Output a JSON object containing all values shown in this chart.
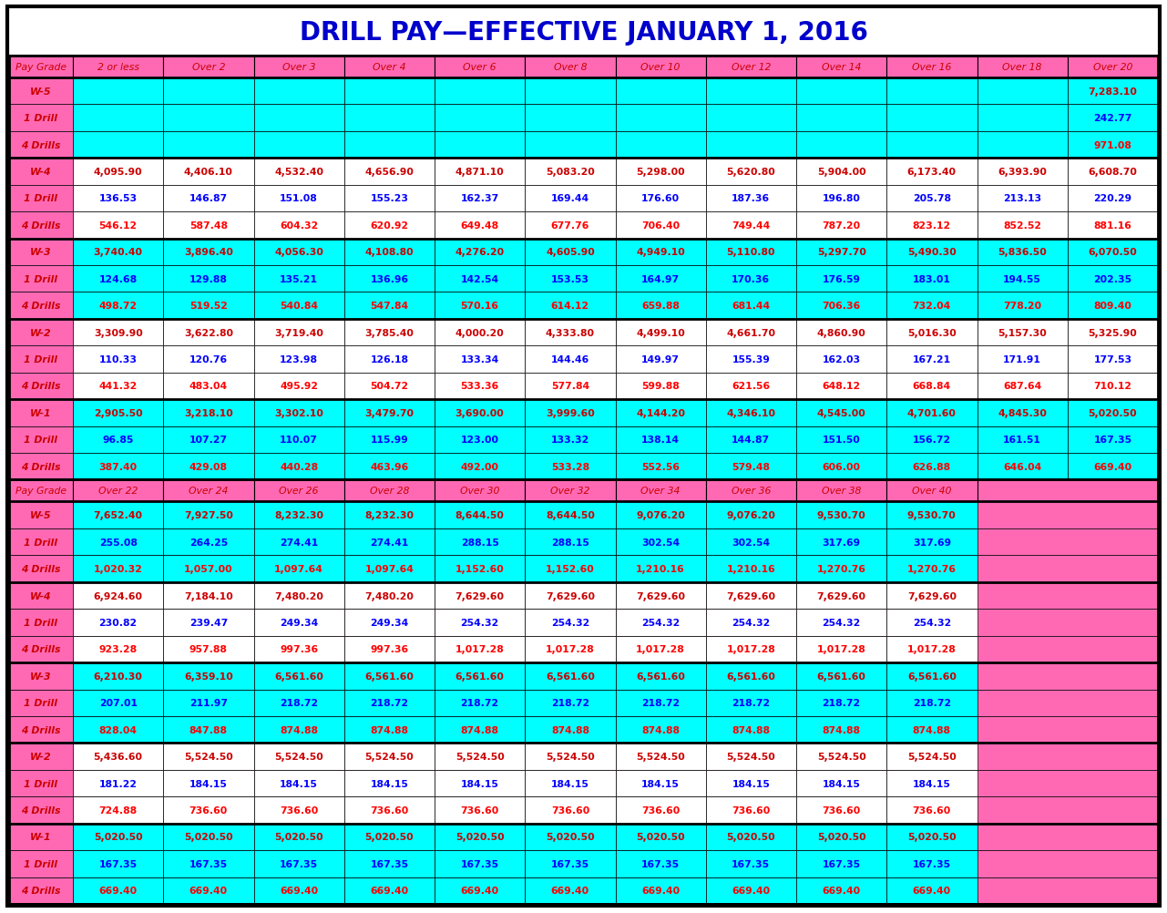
{
  "title": "DRILL PAY—EFFECTIVE JANUARY 1, 2016",
  "title_color": "#0000CC",
  "title_fontsize": 20,
  "bg_color": "#FFFFFF",
  "header1_cols": [
    "Pay Grade",
    "2 or less",
    "Over 2",
    "Over 3",
    "Over 4",
    "Over 6",
    "Over 8",
    "Over 10",
    "Over 12",
    "Over 14",
    "Over 16",
    "Over 18",
    "Over 20"
  ],
  "header2_cols": [
    "Pay Grade",
    "Over 22",
    "Over 24",
    "Over 26",
    "Over 28",
    "Over 30",
    "Over 32",
    "Over 34",
    "Over 36",
    "Over 38",
    "Over 40"
  ],
  "header_bg": "#FF69B4",
  "cyan_bg": "#00FFFF",
  "white_bg": "#FFFFFF",
  "grade_label_color": "#CC0000",
  "drill1_color": "#0000FF",
  "drill4_color": "#FF0000",
  "section1": [
    {
      "grade": "W-5",
      "bg": "#00FFFF",
      "rows": [
        {
          "label": "W-5",
          "type": "grade",
          "values": [
            "",
            "",
            "",
            "",
            "",
            "",
            "",
            "",
            "",
            "",
            "",
            "7,283.10"
          ]
        },
        {
          "label": "1 Drill",
          "type": "drill1",
          "values": [
            "",
            "",
            "",
            "",
            "",
            "",
            "",
            "",
            "",
            "",
            "",
            "242.77"
          ]
        },
        {
          "label": "4 Drills",
          "type": "drill4",
          "values": [
            "",
            "",
            "",
            "",
            "",
            "",
            "",
            "",
            "",
            "",
            "",
            "971.08"
          ]
        }
      ]
    },
    {
      "grade": "W-4",
      "bg": "#FFFFFF",
      "rows": [
        {
          "label": "W-4",
          "type": "grade",
          "values": [
            "4,095.90",
            "4,406.10",
            "4,532.40",
            "4,656.90",
            "4,871.10",
            "5,083.20",
            "5,298.00",
            "5,620.80",
            "5,904.00",
            "6,173.40",
            "6,393.90",
            "6,608.70"
          ]
        },
        {
          "label": "1 Drill",
          "type": "drill1",
          "values": [
            "136.53",
            "146.87",
            "151.08",
            "155.23",
            "162.37",
            "169.44",
            "176.60",
            "187.36",
            "196.80",
            "205.78",
            "213.13",
            "220.29"
          ]
        },
        {
          "label": "4 Drills",
          "type": "drill4",
          "values": [
            "546.12",
            "587.48",
            "604.32",
            "620.92",
            "649.48",
            "677.76",
            "706.40",
            "749.44",
            "787.20",
            "823.12",
            "852.52",
            "881.16"
          ]
        }
      ]
    },
    {
      "grade": "W-3",
      "bg": "#00FFFF",
      "rows": [
        {
          "label": "W-3",
          "type": "grade",
          "values": [
            "3,740.40",
            "3,896.40",
            "4,056.30",
            "4,108.80",
            "4,276.20",
            "4,605.90",
            "4,949.10",
            "5,110.80",
            "5,297.70",
            "5,490.30",
            "5,836.50",
            "6,070.50"
          ]
        },
        {
          "label": "1 Drill",
          "type": "drill1",
          "values": [
            "124.68",
            "129.88",
            "135.21",
            "136.96",
            "142.54",
            "153.53",
            "164.97",
            "170.36",
            "176.59",
            "183.01",
            "194.55",
            "202.35"
          ]
        },
        {
          "label": "4 Drills",
          "type": "drill4",
          "values": [
            "498.72",
            "519.52",
            "540.84",
            "547.84",
            "570.16",
            "614.12",
            "659.88",
            "681.44",
            "706.36",
            "732.04",
            "778.20",
            "809.40"
          ]
        }
      ]
    },
    {
      "grade": "W-2",
      "bg": "#FFFFFF",
      "rows": [
        {
          "label": "W-2",
          "type": "grade",
          "values": [
            "3,309.90",
            "3,622.80",
            "3,719.40",
            "3,785.40",
            "4,000.20",
            "4,333.80",
            "4,499.10",
            "4,661.70",
            "4,860.90",
            "5,016.30",
            "5,157.30",
            "5,325.90"
          ]
        },
        {
          "label": "1 Drill",
          "type": "drill1",
          "values": [
            "110.33",
            "120.76",
            "123.98",
            "126.18",
            "133.34",
            "144.46",
            "149.97",
            "155.39",
            "162.03",
            "167.21",
            "171.91",
            "177.53"
          ]
        },
        {
          "label": "4 Drills",
          "type": "drill4",
          "values": [
            "441.32",
            "483.04",
            "495.92",
            "504.72",
            "533.36",
            "577.84",
            "599.88",
            "621.56",
            "648.12",
            "668.84",
            "687.64",
            "710.12"
          ]
        }
      ]
    },
    {
      "grade": "W-1",
      "bg": "#00FFFF",
      "rows": [
        {
          "label": "W-1",
          "type": "grade",
          "values": [
            "2,905.50",
            "3,218.10",
            "3,302.10",
            "3,479.70",
            "3,690.00",
            "3,999.60",
            "4,144.20",
            "4,346.10",
            "4,545.00",
            "4,701.60",
            "4,845.30",
            "5,020.50"
          ]
        },
        {
          "label": "1 Drill",
          "type": "drill1",
          "values": [
            "96.85",
            "107.27",
            "110.07",
            "115.99",
            "123.00",
            "133.32",
            "138.14",
            "144.87",
            "151.50",
            "156.72",
            "161.51",
            "167.35"
          ]
        },
        {
          "label": "4 Drills",
          "type": "drill4",
          "values": [
            "387.40",
            "429.08",
            "440.28",
            "463.96",
            "492.00",
            "533.28",
            "552.56",
            "579.48",
            "606.00",
            "626.88",
            "646.04",
            "669.40"
          ]
        }
      ]
    }
  ],
  "section2": [
    {
      "grade": "W-5",
      "bg": "#00FFFF",
      "rows": [
        {
          "label": "W-5",
          "type": "grade",
          "values": [
            "7,652.40",
            "7,927.50",
            "8,232.30",
            "8,232.30",
            "8,644.50",
            "8,644.50",
            "9,076.20",
            "9,076.20",
            "9,530.70",
            "9,530.70"
          ]
        },
        {
          "label": "1 Drill",
          "type": "drill1",
          "values": [
            "255.08",
            "264.25",
            "274.41",
            "274.41",
            "288.15",
            "288.15",
            "302.54",
            "302.54",
            "317.69",
            "317.69"
          ]
        },
        {
          "label": "4 Drills",
          "type": "drill4",
          "values": [
            "1,020.32",
            "1,057.00",
            "1,097.64",
            "1,097.64",
            "1,152.60",
            "1,152.60",
            "1,210.16",
            "1,210.16",
            "1,270.76",
            "1,270.76"
          ]
        }
      ]
    },
    {
      "grade": "W-4",
      "bg": "#FFFFFF",
      "rows": [
        {
          "label": "W-4",
          "type": "grade",
          "values": [
            "6,924.60",
            "7,184.10",
            "7,480.20",
            "7,480.20",
            "7,629.60",
            "7,629.60",
            "7,629.60",
            "7,629.60",
            "7,629.60",
            "7,629.60"
          ]
        },
        {
          "label": "1 Drill",
          "type": "drill1",
          "values": [
            "230.82",
            "239.47",
            "249.34",
            "249.34",
            "254.32",
            "254.32",
            "254.32",
            "254.32",
            "254.32",
            "254.32"
          ]
        },
        {
          "label": "4 Drills",
          "type": "drill4",
          "values": [
            "923.28",
            "957.88",
            "997.36",
            "997.36",
            "1,017.28",
            "1,017.28",
            "1,017.28",
            "1,017.28",
            "1,017.28",
            "1,017.28"
          ]
        }
      ]
    },
    {
      "grade": "W-3",
      "bg": "#00FFFF",
      "rows": [
        {
          "label": "W-3",
          "type": "grade",
          "values": [
            "6,210.30",
            "6,359.10",
            "6,561.60",
            "6,561.60",
            "6,561.60",
            "6,561.60",
            "6,561.60",
            "6,561.60",
            "6,561.60",
            "6,561.60"
          ]
        },
        {
          "label": "1 Drill",
          "type": "drill1",
          "values": [
            "207.01",
            "211.97",
            "218.72",
            "218.72",
            "218.72",
            "218.72",
            "218.72",
            "218.72",
            "218.72",
            "218.72"
          ]
        },
        {
          "label": "4 Drills",
          "type": "drill4",
          "values": [
            "828.04",
            "847.88",
            "874.88",
            "874.88",
            "874.88",
            "874.88",
            "874.88",
            "874.88",
            "874.88",
            "874.88"
          ]
        }
      ]
    },
    {
      "grade": "W-2",
      "bg": "#FFFFFF",
      "rows": [
        {
          "label": "W-2",
          "type": "grade",
          "values": [
            "5,436.60",
            "5,524.50",
            "5,524.50",
            "5,524.50",
            "5,524.50",
            "5,524.50",
            "5,524.50",
            "5,524.50",
            "5,524.50",
            "5,524.50"
          ]
        },
        {
          "label": "1 Drill",
          "type": "drill1",
          "values": [
            "181.22",
            "184.15",
            "184.15",
            "184.15",
            "184.15",
            "184.15",
            "184.15",
            "184.15",
            "184.15",
            "184.15"
          ]
        },
        {
          "label": "4 Drills",
          "type": "drill4",
          "values": [
            "724.88",
            "736.60",
            "736.60",
            "736.60",
            "736.60",
            "736.60",
            "736.60",
            "736.60",
            "736.60",
            "736.60"
          ]
        }
      ]
    },
    {
      "grade": "W-1",
      "bg": "#00FFFF",
      "rows": [
        {
          "label": "W-1",
          "type": "grade",
          "values": [
            "5,020.50",
            "5,020.50",
            "5,020.50",
            "5,020.50",
            "5,020.50",
            "5,020.50",
            "5,020.50",
            "5,020.50",
            "5,020.50",
            "5,020.50"
          ]
        },
        {
          "label": "1 Drill",
          "type": "drill1",
          "values": [
            "167.35",
            "167.35",
            "167.35",
            "167.35",
            "167.35",
            "167.35",
            "167.35",
            "167.35",
            "167.35",
            "167.35"
          ]
        },
        {
          "label": "4 Drills",
          "type": "drill4",
          "values": [
            "669.40",
            "669.40",
            "669.40",
            "669.40",
            "669.40",
            "669.40",
            "669.40",
            "669.40",
            "669.40",
            "669.40"
          ]
        }
      ]
    }
  ]
}
